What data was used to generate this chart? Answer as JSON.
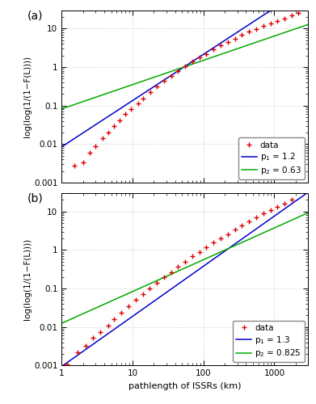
{
  "panel_a": {
    "label": "(a)",
    "p1": 1.2,
    "p2": 0.63,
    "fit1_scale": 0.0085,
    "fit2_scale": 0.082,
    "xlim": [
      1,
      3000
    ],
    "ylim": [
      0.001,
      30
    ],
    "data_x": [
      1.5,
      2.0,
      2.5,
      3.0,
      3.8,
      4.5,
      5.5,
      6.5,
      8.0,
      9.5,
      12.0,
      14.0,
      18.0,
      22.0,
      28.0,
      35.0,
      44.0,
      55.0,
      70.0,
      88.0,
      110.0,
      140.0,
      175.0,
      220.0,
      280.0,
      350.0,
      440.0,
      550.0,
      700.0,
      880.0,
      1100.0,
      1400.0,
      1750.0,
      2200.0
    ],
    "data_y": [
      0.0028,
      0.0034,
      0.006,
      0.009,
      0.014,
      0.02,
      0.03,
      0.042,
      0.06,
      0.08,
      0.115,
      0.155,
      0.22,
      0.31,
      0.44,
      0.6,
      0.8,
      1.05,
      1.38,
      1.75,
      2.2,
      2.85,
      3.6,
      4.5,
      5.5,
      6.8,
      8.2,
      9.8,
      11.5,
      13.5,
      15.8,
      18.5,
      21.5,
      25.0
    ]
  },
  "panel_b": {
    "label": "(b)",
    "p1": 1.3,
    "p2": 0.825,
    "fit1_scale": 0.00095,
    "fit2_scale": 0.0125,
    "xlim": [
      1,
      3000
    ],
    "ylim": [
      0.001,
      30
    ],
    "data_x": [
      1.2,
      1.7,
      2.2,
      2.8,
      3.5,
      4.5,
      5.5,
      7.0,
      8.8,
      11.0,
      14.0,
      17.5,
      22.0,
      28.0,
      35.0,
      44.0,
      55.0,
      70.0,
      88.0,
      110.0,
      140.0,
      175.0,
      220.0,
      280.0,
      350.0,
      440.0,
      550.0,
      700.0,
      880.0,
      1100.0,
      1400.0,
      1750.0
    ],
    "data_y": [
      0.00105,
      0.0022,
      0.0033,
      0.0052,
      0.0075,
      0.011,
      0.016,
      0.024,
      0.034,
      0.05,
      0.072,
      0.1,
      0.14,
      0.195,
      0.27,
      0.37,
      0.5,
      0.68,
      0.9,
      1.18,
      1.55,
      2.0,
      2.6,
      3.4,
      4.4,
      5.6,
      7.0,
      8.8,
      10.8,
      13.2,
      16.2,
      20.0
    ]
  },
  "xlabel": "pathlength of ISSRs (km)",
  "ylabel": "log(log(1/(1−F(L))))",
  "data_color": "#dd0000",
  "fit1_color": "#0000cc",
  "fit2_color": "#00aa00",
  "background_color": "#ffffff",
  "grid_color": "#c8c8c8"
}
